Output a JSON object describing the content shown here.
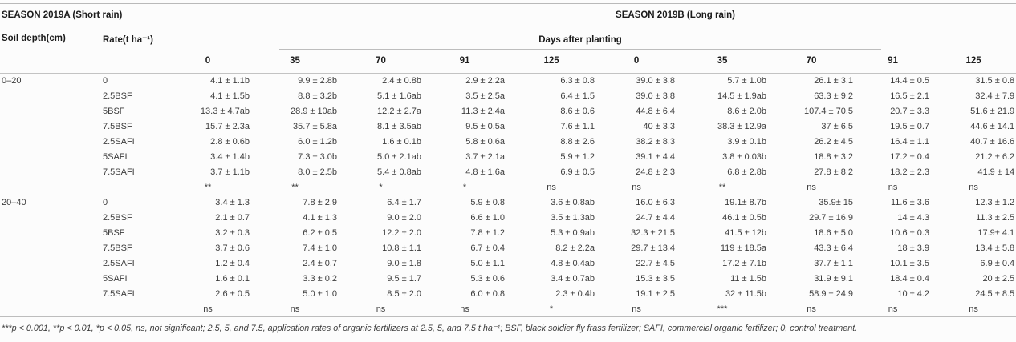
{
  "table": {
    "season_a": "SEASON 2019A (Short rain)",
    "season_b": "SEASON 2019B (Long rain)",
    "soil_depth_label": "Soil depth(cm)",
    "rate_label": "Rate(t ha⁻¹)",
    "days_after_planting_label": "Days after planting",
    "day_headers": [
      "0",
      "35",
      "70",
      "91",
      "125",
      "0",
      "35",
      "70",
      "91",
      "125"
    ],
    "sections": [
      {
        "depth": "0–20",
        "rows": [
          {
            "rate": "0",
            "values": [
              "4.1 ± 1.1b",
              "9.9 ± 2.8b",
              "2.4 ± 0.8b",
              "2.9 ± 2.2a",
              "6.3 ± 0.8",
              "39.0 ± 3.8",
              "5.7 ± 1.0b",
              "26.1 ± 3.1",
              "14.4 ± 0.5",
              "31.5 ± 0.8"
            ]
          },
          {
            "rate": "2.5BSF",
            "values": [
              "4.1 ± 1.5b",
              "8.8 ± 3.2b",
              "5.1 ± 1.6ab",
              "3.5 ± 2.5a",
              "6.4 ± 1.5",
              "39.0 ± 3.8",
              "14.5 ± 1.9ab",
              "63.3 ± 9.2",
              "16.5 ± 2.1",
              "32.4 ± 7.9"
            ]
          },
          {
            "rate": "5BSF",
            "values": [
              "13.3 ± 4.7ab",
              "28.9 ± 10ab",
              "12.2 ± 2.7a",
              "11.3 ± 2.4a",
              "8.6 ± 0.6",
              "44.8 ± 6.4",
              "8.6 ± 2.0b",
              "107.4 ± 70.5",
              "20.7 ± 3.3",
              "51.6 ± 21.9"
            ]
          },
          {
            "rate": "7.5BSF",
            "values": [
              "15.7 ± 2.3a",
              "35.7 ± 5.8a",
              "8.1 ± 3.5ab",
              "9.5 ± 0.5a",
              "7.6 ± 1.1",
              "40 ± 3.3",
              "38.3 ± 12.9a",
              "37 ± 6.5",
              "19.5 ± 0.7",
              "44.6 ± 14.1"
            ]
          },
          {
            "rate": "2.5SAFI",
            "values": [
              "2.8 ± 0.6b",
              "6.0 ± 1.2b",
              "1.6 ± 0.1b",
              "5.8 ± 0.6a",
              "8.8 ± 2.6",
              "38.2 ± 8.3",
              "3.9 ± 0.1b",
              "26.2 ± 4.5",
              "16.4 ± 1.1",
              "40.7 ± 16.6"
            ]
          },
          {
            "rate": "5SAFI",
            "values": [
              "3.4 ± 1.4b",
              "7.3 ± 3.0b",
              "5.0 ± 2.1ab",
              "3.7 ± 2.1a",
              "5.9 ± 1.2",
              "39.1 ± 4.4",
              "3.8 ± 0.03b",
              "18.8 ± 3.2",
              "17.2 ± 0.4",
              "21.2 ± 6.2"
            ]
          },
          {
            "rate": "7.5SAFI",
            "values": [
              "3.7 ± 1.1b",
              "8.0 ± 2.5b",
              "5.4 ± 0.8ab",
              "4.8 ± 1.6a",
              "6.9 ± 0.5",
              "24.8 ± 2.3",
              "6.8 ± 2.8b",
              "27.8 ± 8.2",
              "18.2 ± 2.3",
              "41.9 ± 14"
            ]
          }
        ],
        "significance": [
          "**",
          "**",
          "*",
          "*",
          "ns",
          "ns",
          "**",
          "ns",
          "ns",
          "ns"
        ]
      },
      {
        "depth": "20–40",
        "rows": [
          {
            "rate": "0",
            "values": [
              "3.4 ± 1.3",
              "7.8 ± 2.9",
              "6.4 ± 1.7",
              "5.9 ± 0.8",
              "3.6 ± 0.8ab",
              "16.0 ± 6.3",
              "19.1± 8.7b",
              "35.9± 15",
              "11.6 ± 3.6",
              "12.3 ± 1.2"
            ]
          },
          {
            "rate": "2.5BSF",
            "values": [
              "2.1 ± 0.7",
              "4.1 ± 1.3",
              "9.0 ± 2.0",
              "6.6 ± 1.0",
              "3.5 ± 1.3ab",
              "24.7 ± 4.4",
              "46.1 ± 0.5b",
              "29.7 ± 16.9",
              "14 ± 4.3",
              "11.3 ± 2.5"
            ]
          },
          {
            "rate": "5BSF",
            "values": [
              "3.2 ± 0.3",
              "6.2 ± 0.5",
              "12.2 ± 2.0",
              "7.8 ± 1.2",
              "5.3 ± 0.9ab",
              "32.3 ± 21.5",
              "41.5 ± 12b",
              "18.6 ± 5.0",
              "10.6 ± 0.3",
              "17.9± 4.1"
            ]
          },
          {
            "rate": "7.5BSF",
            "values": [
              "3.7 ± 0.6",
              "7.4 ± 1.0",
              "10.8 ± 1.1",
              "6.7 ± 0.4",
              "8.2 ± 2.2a",
              "29.7 ± 13.4",
              "119 ± 18.5a",
              "43.3 ± 6.4",
              "18 ± 3.9",
              "13.4 ± 5.8"
            ]
          },
          {
            "rate": "2.5SAFI",
            "values": [
              "1.2 ± 0.4",
              "2.4 ± 0.7",
              "9.0 ± 1.8",
              "5.0 ± 1.1",
              "4.8 ± 0.4ab",
              "22.7 ± 4.5",
              "17.2 ± 7.1b",
              "37.7 ± 1.1",
              "10.1 ± 3.5",
              "6.9 ± 0.4"
            ]
          },
          {
            "rate": "5SAFI",
            "values": [
              "1.6 ± 0.1",
              "3.3 ± 0.2",
              "9.5 ± 1.7",
              "5.3 ± 0.6",
              "3.4 ± 0.7ab",
              "15.3 ± 3.5",
              "11 ± 1.5b",
              "31.9 ± 9.1",
              "18.4 ± 0.4",
              "20 ± 2.5"
            ]
          },
          {
            "rate": "7.5SAFI",
            "values": [
              "2.6 ± 0.5",
              "5.0 ± 1.0",
              "8.5 ± 2.0",
              "6.0 ± 0.8",
              "2.3 ± 0.4b",
              "19.1 ± 2.5",
              "32 ± 11.5b",
              "58.9 ± 24.9",
              "10 ± 4.2",
              "24.5 ± 8.5"
            ]
          }
        ],
        "significance": [
          "ns",
          "ns",
          "ns",
          "ns",
          "*",
          "ns",
          "***",
          "ns",
          "ns",
          "ns"
        ]
      }
    ],
    "footnote": "***p < 0.001, **p < 0.01, *p < 0.05, ns, not significant; 2.5, 5, and 7.5, application rates of organic fertilizers at 2.5, 5, and 7.5 t ha⁻¹; BSF, black soldier fly frass fertilizer; SAFI, commercial organic fertilizer; 0, control treatment."
  }
}
